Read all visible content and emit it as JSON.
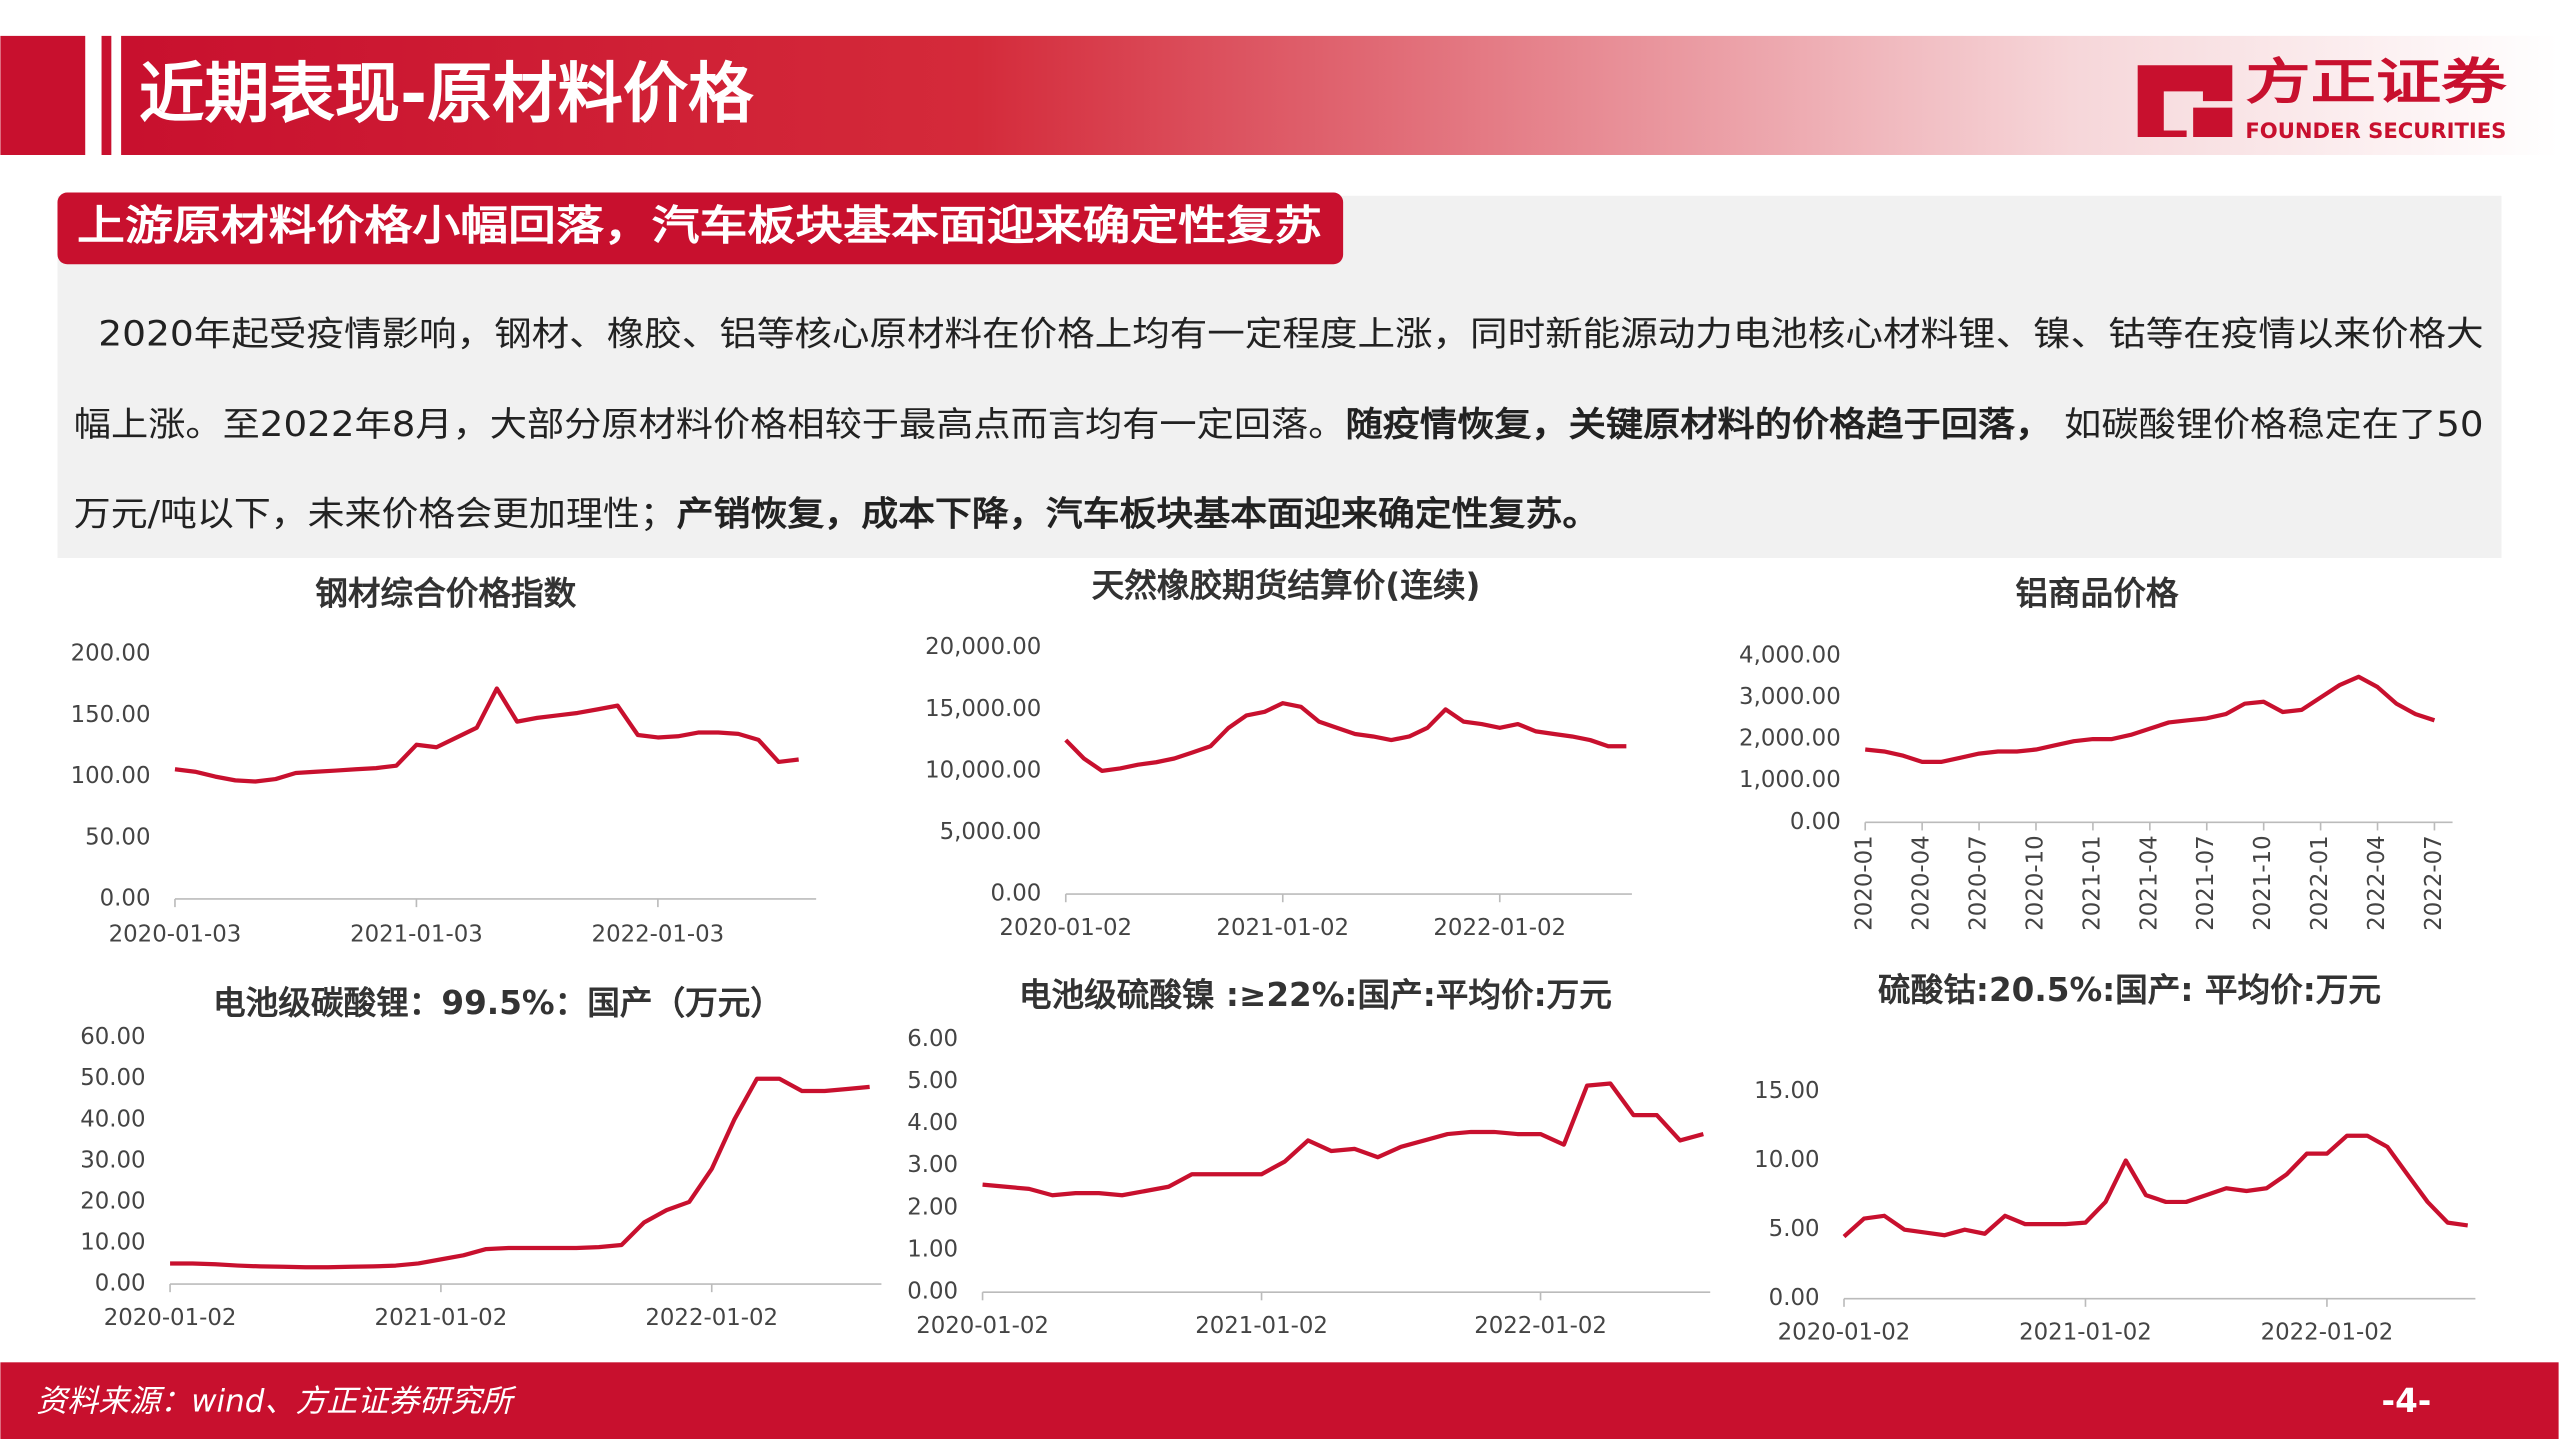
{
  "header": {
    "title": "近期表现-原材料价格",
    "logo_cn": "方正证券",
    "logo_en": "FOUNDER SECURITIES"
  },
  "subtitle": "上游原材料价格小幅回落，汽车板块基本面迎来确定性复苏",
  "body": {
    "line1": "2020年起受疫情影响，钢材、橡胶、铝等核心原材料在价格上均有一定程度上涨，同时新能源动力电池核心材料锂、镍、钴等在疫情以来价格大",
    "line2a": "幅上涨。至2022年8月，大部分原材料价格相较于最高点而言均有一定回落。",
    "line2b": "随疫情恢复，关键原材料的价格趋于回落，",
    "line2c": " 如碳酸锂价格稳定在了50",
    "line3a": "万元/吨以下，未来价格会更加理性；",
    "line3b": "产销恢复，成本下降，汽车板块基本面迎来确定性复苏。"
  },
  "footer": {
    "source": "资料来源：wind、方正证券研究所",
    "page": "-4-"
  },
  "chart_data": [
    {
      "type": "line",
      "title": "钢材综合价格指数",
      "color": "#c8102e",
      "categories": [
        "2020-01-03",
        null,
        null,
        null,
        null,
        null,
        null,
        null,
        null,
        null,
        null,
        null,
        "2021-01-03",
        null,
        null,
        null,
        null,
        null,
        null,
        null,
        null,
        null,
        null,
        null,
        "2022-01-03",
        null,
        null,
        null,
        null,
        null,
        null,
        null
      ],
      "values": [
        106,
        104,
        100,
        97,
        96,
        98,
        103,
        104,
        105,
        106,
        107,
        109,
        126,
        124,
        132,
        140,
        172,
        145,
        148,
        150,
        152,
        155,
        158,
        134,
        132,
        133,
        136,
        136,
        135,
        130,
        112,
        114
      ],
      "ylim": [
        0,
        200
      ],
      "yticks": [
        {
          "value": 0,
          "label": "0.00"
        },
        {
          "value": 50,
          "label": "50.00"
        },
        {
          "value": 100,
          "label": "100.00"
        },
        {
          "value": 150,
          "label": "150.00"
        },
        {
          "value": 200,
          "label": "200.00"
        }
      ]
    },
    {
      "type": "line",
      "title": "天然橡胶期货结算价(连续)",
      "color": "#c8102e",
      "categories": [
        "2020-01-02",
        null,
        null,
        null,
        null,
        null,
        null,
        null,
        null,
        null,
        null,
        null,
        "2021-01-02",
        null,
        null,
        null,
        null,
        null,
        null,
        null,
        null,
        null,
        null,
        null,
        "2022-01-02",
        null,
        null,
        null,
        null,
        null,
        null,
        null
      ],
      "values": [
        12500,
        11000,
        10000,
        10200,
        10500,
        10700,
        11000,
        11500,
        12000,
        13500,
        14500,
        14800,
        15500,
        15200,
        14000,
        13500,
        13000,
        12800,
        12500,
        12800,
        13500,
        15000,
        14000,
        13800,
        13500,
        13800,
        13200,
        13000,
        12800,
        12500,
        12000,
        12000
      ],
      "ylim": [
        0,
        20000
      ],
      "yticks": [
        {
          "value": 0,
          "label": "0.00"
        },
        {
          "value": 5000,
          "label": "5,000.00"
        },
        {
          "value": 10000,
          "label": "10,000.00"
        },
        {
          "value": 15000,
          "label": "15,000.00"
        },
        {
          "value": 20000,
          "label": "20,000.00"
        }
      ]
    },
    {
      "type": "line",
      "title": "铝商品价格",
      "color": "#c8102e",
      "categories": [
        "2020-01",
        null,
        null,
        "2020-04",
        null,
        null,
        "2020-07",
        null,
        null,
        "2020-10",
        null,
        null,
        "2021-01",
        null,
        null,
        "2021-04",
        null,
        null,
        "2021-07",
        null,
        null,
        "2021-10",
        null,
        null,
        "2022-01",
        null,
        null,
        "2022-04",
        null,
        null,
        "2022-07"
      ],
      "values": [
        1750,
        1700,
        1600,
        1450,
        1450,
        1550,
        1650,
        1700,
        1700,
        1750,
        1850,
        1950,
        2000,
        2000,
        2100,
        2250,
        2400,
        2450,
        2500,
        2600,
        2850,
        2900,
        2650,
        2700,
        3000,
        3300,
        3500,
        3250,
        2850,
        2600,
        2450
      ],
      "ylim": [
        0,
        4000
      ],
      "yticks": [
        {
          "value": 0,
          "label": "0.00"
        },
        {
          "value": 1000,
          "label": "1,000.00"
        },
        {
          "value": 2000,
          "label": "2,000.00"
        },
        {
          "value": 3000,
          "label": "3,000.00"
        },
        {
          "value": 4000,
          "label": "4,000.00"
        }
      ]
    },
    {
      "type": "line",
      "title": "电池级碳酸锂：99.5%：国产（万元）",
      "color": "#c8102e",
      "categories": [
        "2020-01-02",
        null,
        null,
        null,
        null,
        null,
        null,
        null,
        null,
        null,
        null,
        null,
        "2021-01-02",
        null,
        null,
        null,
        null,
        null,
        null,
        null,
        null,
        null,
        null,
        null,
        "2022-01-02",
        null,
        null,
        null,
        null,
        null,
        null,
        null
      ],
      "values": [
        5,
        5,
        4.8,
        4.5,
        4.3,
        4.2,
        4.1,
        4.1,
        4.2,
        4.3,
        4.5,
        5,
        6,
        7,
        8.5,
        8.8,
        8.8,
        8.8,
        8.8,
        9,
        9.5,
        15,
        18,
        20,
        28,
        40,
        50,
        50,
        47,
        47,
        47.5,
        48
      ],
      "ylim": [
        0,
        60
      ],
      "yticks": [
        {
          "value": 0,
          "label": "0.00"
        },
        {
          "value": 10,
          "label": "10.00"
        },
        {
          "value": 20,
          "label": "20.00"
        },
        {
          "value": 30,
          "label": "30.00"
        },
        {
          "value": 40,
          "label": "40.00"
        },
        {
          "value": 50,
          "label": "50.00"
        },
        {
          "value": 60,
          "label": "60.00"
        }
      ]
    },
    {
      "type": "line",
      "title": "电池级硫酸镍 :≥22%:国产:平均价:万元",
      "color": "#c8102e",
      "categories": [
        "2020-01-02",
        null,
        null,
        null,
        null,
        null,
        null,
        null,
        null,
        null,
        null,
        null,
        "2021-01-02",
        null,
        null,
        null,
        null,
        null,
        null,
        null,
        null,
        null,
        null,
        null,
        "2022-01-02",
        null,
        null,
        null,
        null,
        null,
        null,
        null
      ],
      "values": [
        2.55,
        2.5,
        2.45,
        2.3,
        2.35,
        2.35,
        2.3,
        2.4,
        2.5,
        2.8,
        2.8,
        2.8,
        2.8,
        3.1,
        3.6,
        3.35,
        3.4,
        3.2,
        3.45,
        3.6,
        3.75,
        3.8,
        3.8,
        3.75,
        3.75,
        3.5,
        4.9,
        4.95,
        4.2,
        4.2,
        3.6,
        3.75
      ],
      "ylim": [
        0,
        6
      ],
      "yticks": [
        {
          "value": 0,
          "label": "0.00"
        },
        {
          "value": 1,
          "label": "1.00"
        },
        {
          "value": 2,
          "label": "2.00"
        },
        {
          "value": 3,
          "label": "3.00"
        },
        {
          "value": 4,
          "label": "4.00"
        },
        {
          "value": 5,
          "label": "5.00"
        },
        {
          "value": 6,
          "label": "6.00"
        }
      ]
    },
    {
      "type": "line",
      "title": "硫酸钴:20.5%:国产: 平均价:万元",
      "color": "#c8102e",
      "categories": [
        "2020-01-02",
        null,
        null,
        null,
        null,
        null,
        null,
        null,
        null,
        null,
        null,
        null,
        "2021-01-02",
        null,
        null,
        null,
        null,
        null,
        null,
        null,
        null,
        null,
        null,
        null,
        "2022-01-02",
        null,
        null,
        null,
        null,
        null,
        null,
        null
      ],
      "values": [
        4.5,
        5.8,
        6,
        5,
        4.8,
        4.6,
        5,
        4.7,
        6,
        5.4,
        5.4,
        5.4,
        5.5,
        7,
        10,
        7.5,
        7,
        7,
        7.5,
        8,
        7.8,
        8,
        9,
        10.5,
        10.5,
        11.8,
        11.8,
        11,
        9,
        7,
        5.5,
        5.3
      ],
      "ylim": [
        0,
        15
      ],
      "yticks": [
        {
          "value": 0,
          "label": "0.00"
        },
        {
          "value": 5,
          "label": "5.00"
        },
        {
          "value": 10,
          "label": "10.00"
        },
        {
          "value": 15,
          "label": "15.00"
        }
      ]
    }
  ]
}
